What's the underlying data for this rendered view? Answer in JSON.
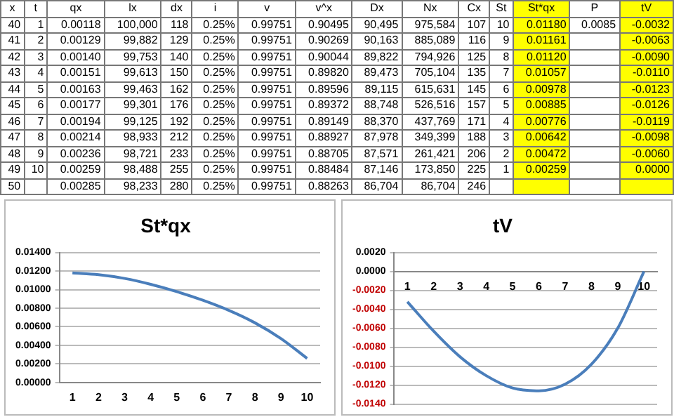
{
  "chart_data": [
    {
      "type": "other",
      "categories": [
        "x",
        "t",
        "qx",
        "lx",
        "dx",
        "i",
        "v",
        "v^x",
        "Dx",
        "Nx",
        "Cx",
        "St",
        "St*qx",
        "P",
        "tV"
      ],
      "colors": [
        null,
        null,
        null,
        null,
        null,
        null,
        null,
        null,
        null,
        null,
        null,
        null,
        "#ffff00",
        null,
        "#ffff00"
      ],
      "cell_labels": [
        [
          "40",
          "1",
          "0.00118",
          "100,000",
          "118",
          "0.25%",
          "0.99751",
          "0.90495",
          "90,495",
          "975,584",
          "107",
          "10",
          "0.01180",
          "0.0085",
          "-0.0032"
        ],
        [
          "41",
          "2",
          "0.00129",
          "99,882",
          "129",
          "0.25%",
          "0.99751",
          "0.90269",
          "90,163",
          "885,089",
          "116",
          "9",
          "0.01161",
          null,
          "-0.0063"
        ],
        [
          "42",
          "3",
          "0.00140",
          "99,753",
          "140",
          "0.25%",
          "0.99751",
          "0.90044",
          "89,822",
          "794,926",
          "125",
          "8",
          "0.01120",
          null,
          "-0.0090"
        ],
        [
          "43",
          "4",
          "0.00151",
          "99,613",
          "150",
          "0.25%",
          "0.99751",
          "0.89820",
          "89,473",
          "705,104",
          "135",
          "7",
          "0.01057",
          null,
          "-0.0110"
        ],
        [
          "44",
          "5",
          "0.00163",
          "99,463",
          "162",
          "0.25%",
          "0.99751",
          "0.89596",
          "89,115",
          "615,631",
          "145",
          "6",
          "0.00978",
          null,
          "-0.0123"
        ],
        [
          "45",
          "6",
          "0.00177",
          "99,301",
          "176",
          "0.25%",
          "0.99751",
          "0.89372",
          "88,748",
          "526,516",
          "157",
          "5",
          "0.00885",
          null,
          "-0.0126"
        ],
        [
          "46",
          "7",
          "0.00194",
          "99,125",
          "192",
          "0.25%",
          "0.99751",
          "0.89149",
          "88,370",
          "437,769",
          "171",
          "4",
          "0.00776",
          null,
          "-0.0119"
        ],
        [
          "47",
          "8",
          "0.00214",
          "98,933",
          "212",
          "0.25%",
          "0.99751",
          "0.88927",
          "87,978",
          "349,399",
          "188",
          "3",
          "0.00642",
          null,
          "-0.0098"
        ],
        [
          "48",
          "9",
          "0.00236",
          "98,721",
          "233",
          "0.25%",
          "0.99751",
          "0.88705",
          "87,571",
          "261,421",
          "206",
          "2",
          "0.00472",
          null,
          "-0.0060"
        ],
        [
          "49",
          "10",
          "0.00259",
          "98,488",
          "255",
          "0.25%",
          "0.99751",
          "0.88484",
          "87,146",
          "173,850",
          "225",
          "1",
          "0.00259",
          null,
          "0.0000"
        ],
        [
          "50",
          null,
          "0.00285",
          "98,233",
          "280",
          "0.25%",
          "0.99751",
          "0.88263",
          "86,704",
          "86,704",
          "246",
          null,
          null,
          null,
          null
        ]
      ]
    },
    {
      "type": "line",
      "title": "St*qx",
      "categories": [
        "1",
        "2",
        "3",
        "4",
        "5",
        "6",
        "7",
        "8",
        "9",
        "10"
      ],
      "series": [
        {
          "color": "#4a7ebb",
          "values": [
            0.0118,
            0.01161,
            0.0112,
            0.01057,
            0.00978,
            0.00885,
            0.00776,
            0.00642,
            0.00472,
            0.00259
          ]
        }
      ],
      "ylim": [
        0,
        0.014
      ],
      "yticks": [
        {
          "value": 0,
          "label": "0.00000"
        },
        {
          "value": 0.002,
          "label": "0.00200"
        },
        {
          "value": 0.004,
          "label": "0.00400"
        },
        {
          "value": 0.006,
          "label": "0.00600"
        },
        {
          "value": 0.008,
          "label": "0.00800"
        },
        {
          "value": 0.01,
          "label": "0.01000"
        },
        {
          "value": 0.012,
          "label": "0.01200"
        },
        {
          "value": 0.014,
          "label": "0.01400"
        }
      ],
      "grid": "y",
      "legend": false,
      "marker": "none"
    },
    {
      "type": "line",
      "title": "tV",
      "categories": [
        "1",
        "2",
        "3",
        "4",
        "5",
        "6",
        "7",
        "8",
        "9",
        "10"
      ],
      "series": [
        {
          "color": "#4a7ebb",
          "values": [
            -0.0032,
            -0.0063,
            -0.009,
            -0.011,
            -0.0123,
            -0.0126,
            -0.0119,
            -0.0098,
            -0.006,
            0.0
          ]
        }
      ],
      "ylim": [
        -0.014,
        0.002
      ],
      "yticks": [
        {
          "value": -0.014,
          "label": "-0.0140"
        },
        {
          "value": -0.012,
          "label": "-0.0120"
        },
        {
          "value": -0.01,
          "label": "-0.0100"
        },
        {
          "value": -0.008,
          "label": "-0.0080"
        },
        {
          "value": -0.006,
          "label": "-0.0060"
        },
        {
          "value": -0.004,
          "label": "-0.0040"
        },
        {
          "value": -0.002,
          "label": "-0.0020"
        },
        {
          "value": 0,
          "label": "0.0000"
        },
        {
          "value": 0.002,
          "label": "0.0020"
        }
      ],
      "grid": "y",
      "legend": false,
      "marker": "none"
    }
  ]
}
